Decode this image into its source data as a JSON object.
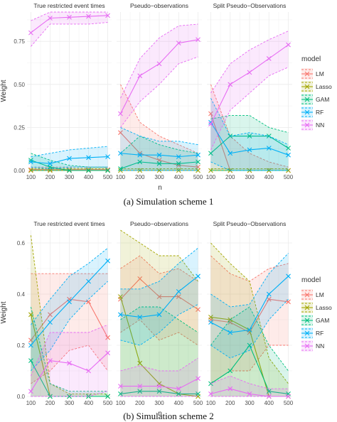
{
  "chart_data": [
    {
      "type": "line",
      "caption": "(a) Simulation scheme 1",
      "xlabel": "n",
      "ylabel": "Weight",
      "x": [
        100,
        200,
        300,
        400,
        500
      ],
      "ylim": [
        0,
        0.92
      ],
      "yticks": [
        0,
        0.25,
        0.5,
        0.75
      ],
      "ytick_labels": [
        "0.00",
        "0.25",
        "0.50",
        "0.75"
      ],
      "panels": [
        {
          "title": "True restricted event times",
          "series": [
            {
              "name": "LM",
              "values": [
                0.005,
                0.005,
                0.005,
                0.005,
                0.005
              ],
              "lower": [
                0.0,
                0.0,
                0.0,
                0.0,
                0.0
              ],
              "upper": [
                0.02,
                0.02,
                0.02,
                0.02,
                0.02
              ]
            },
            {
              "name": "Lasso",
              "values": [
                0.0,
                0.0,
                0.0,
                0.0,
                0.0
              ],
              "lower": [
                0.0,
                0.0,
                0.0,
                0.0,
                0.0
              ],
              "upper": [
                0.01,
                0.01,
                0.01,
                0.01,
                0.01
              ]
            },
            {
              "name": "GAM",
              "values": [
                0.06,
                0.02,
                0.0,
                0.0,
                0.0
              ],
              "lower": [
                0.0,
                0.0,
                0.0,
                0.0,
                0.0
              ],
              "upper": [
                0.1,
                0.06,
                0.03,
                0.02,
                0.02
              ]
            },
            {
              "name": "RF",
              "values": [
                0.05,
                0.04,
                0.07,
                0.075,
                0.08
              ],
              "lower": [
                0.02,
                0.01,
                0.02,
                0.02,
                0.02
              ],
              "upper": [
                0.08,
                0.1,
                0.12,
                0.13,
                0.14
              ]
            },
            {
              "name": "NN",
              "values": [
                0.8,
                0.885,
                0.89,
                0.895,
                0.9
              ],
              "lower": [
                0.72,
                0.85,
                0.85,
                0.85,
                0.86
              ],
              "upper": [
                0.87,
                0.92,
                0.92,
                0.92,
                0.92
              ]
            }
          ]
        },
        {
          "title": "Pseudo−observations",
          "series": [
            {
              "name": "LM",
              "values": [
                0.22,
                0.1,
                0.06,
                0.03,
                0.02
              ],
              "lower": [
                0.0,
                0.0,
                0.0,
                0.0,
                0.0
              ],
              "upper": [
                0.5,
                0.28,
                0.2,
                0.15,
                0.1
              ]
            },
            {
              "name": "Lasso",
              "values": [
                0.0,
                0.0,
                0.0,
                0.0,
                0.0
              ],
              "lower": [
                0.0,
                0.0,
                0.0,
                0.0,
                0.0
              ],
              "upper": [
                0.01,
                0.01,
                0.01,
                0.01,
                0.01
              ]
            },
            {
              "name": "GAM",
              "values": [
                0.01,
                0.05,
                0.04,
                0.04,
                0.05
              ],
              "lower": [
                0.0,
                0.0,
                0.0,
                0.0,
                0.0
              ],
              "upper": [
                0.1,
                0.2,
                0.15,
                0.12,
                0.1
              ]
            },
            {
              "name": "RF",
              "values": [
                0.1,
                0.09,
                0.09,
                0.08,
                0.09
              ],
              "lower": [
                0.0,
                0.0,
                0.0,
                0.0,
                0.0
              ],
              "upper": [
                0.25,
                0.2,
                0.17,
                0.17,
                0.15
              ]
            },
            {
              "name": "NN",
              "values": [
                0.33,
                0.55,
                0.62,
                0.74,
                0.76
              ],
              "lower": [
                0.25,
                0.4,
                0.5,
                0.62,
                0.66
              ],
              "upper": [
                0.42,
                0.65,
                0.77,
                0.84,
                0.85
              ]
            }
          ]
        },
        {
          "title": "Split Pseudo−Observations",
          "series": [
            {
              "name": "LM",
              "values": [
                0.33,
                0.0,
                0.0,
                0.0,
                0.0
              ],
              "lower": [
                0.0,
                0.0,
                0.0,
                0.0,
                0.0
              ],
              "upper": [
                0.5,
                0.2,
                0.1,
                0.05,
                0.02
              ]
            },
            {
              "name": "Lasso",
              "values": [
                0.0,
                0.0,
                0.0,
                0.0,
                0.0
              ],
              "lower": [
                0.0,
                0.0,
                0.0,
                0.0,
                0.0
              ],
              "upper": [
                0.01,
                0.01,
                0.01,
                0.01,
                0.01
              ]
            },
            {
              "name": "GAM",
              "values": [
                0.1,
                0.2,
                0.2,
                0.2,
                0.13
              ],
              "lower": [
                0.0,
                0.0,
                0.0,
                0.0,
                0.0
              ],
              "upper": [
                0.3,
                0.32,
                0.32,
                0.25,
                0.22
              ]
            },
            {
              "name": "RF",
              "values": [
                0.28,
                0.1,
                0.12,
                0.13,
                0.09
              ],
              "lower": [
                0.05,
                0.0,
                0.0,
                0.0,
                0.0
              ],
              "upper": [
                0.42,
                0.2,
                0.22,
                0.2,
                0.15
              ]
            },
            {
              "name": "NN",
              "values": [
                0.27,
                0.5,
                0.57,
                0.65,
                0.73
              ],
              "lower": [
                0.12,
                0.35,
                0.45,
                0.55,
                0.6
              ],
              "upper": [
                0.45,
                0.62,
                0.7,
                0.76,
                0.81
              ]
            }
          ]
        }
      ]
    },
    {
      "type": "line",
      "caption": "(b) Simulation scheme 2",
      "xlabel": "n",
      "ylabel": "Weight",
      "x": [
        100,
        200,
        300,
        400,
        500
      ],
      "ylim": [
        0,
        0.65
      ],
      "yticks": [
        0,
        0.2,
        0.4,
        0.6
      ],
      "ytick_labels": [
        "0.0",
        "0.2",
        "0.4",
        "0.6"
      ],
      "panels": [
        {
          "title": "True restricted event times",
          "series": [
            {
              "name": "LM",
              "values": [
                0.22,
                0.32,
                0.38,
                0.37,
                0.23
              ],
              "lower": [
                0.05,
                0.1,
                0.18,
                0.2,
                0.1
              ],
              "upper": [
                0.48,
                0.48,
                0.48,
                0.48,
                0.48
              ]
            },
            {
              "name": "Lasso",
              "values": [
                0.32,
                0.0,
                0.0,
                0.0,
                0.0
              ],
              "lower": [
                0.0,
                0.0,
                0.0,
                0.0,
                0.0
              ],
              "upper": [
                0.63,
                0.05,
                0.01,
                0.01,
                0.01
              ]
            },
            {
              "name": "GAM",
              "values": [
                0.14,
                0.0,
                0.0,
                0.0,
                0.0
              ],
              "lower": [
                0.0,
                0.0,
                0.0,
                0.0,
                0.0
              ],
              "upper": [
                0.35,
                0.05,
                0.02,
                0.02,
                0.02
              ]
            },
            {
              "name": "RF",
              "values": [
                0.2,
                0.29,
                0.37,
                0.45,
                0.53
              ],
              "lower": [
                0.1,
                0.18,
                0.3,
                0.38,
                0.45
              ],
              "upper": [
                0.28,
                0.38,
                0.47,
                0.52,
                0.58
              ]
            },
            {
              "name": "NN",
              "values": [
                0.02,
                0.14,
                0.13,
                0.1,
                0.17
              ],
              "lower": [
                0.0,
                0.0,
                0.0,
                0.0,
                0.02
              ],
              "upper": [
                0.08,
                0.25,
                0.25,
                0.25,
                0.28
              ]
            }
          ]
        },
        {
          "title": "Pseudo−observations",
          "series": [
            {
              "name": "LM",
              "values": [
                0.38,
                0.46,
                0.39,
                0.39,
                0.34
              ],
              "lower": [
                0.25,
                0.3,
                0.22,
                0.25,
                0.2
              ],
              "upper": [
                0.5,
                0.55,
                0.48,
                0.5,
                0.45
              ]
            },
            {
              "name": "Lasso",
              "values": [
                0.39,
                0.13,
                0.05,
                0.01,
                0.0
              ],
              "lower": [
                0.0,
                0.0,
                0.0,
                0.0,
                0.0
              ],
              "upper": [
                0.65,
                0.6,
                0.55,
                0.55,
                0.45
              ]
            },
            {
              "name": "GAM",
              "values": [
                0.01,
                0.02,
                0.02,
                0.01,
                0.01
              ],
              "lower": [
                0.0,
                0.0,
                0.0,
                0.0,
                0.0
              ],
              "upper": [
                0.3,
                0.35,
                0.35,
                0.3,
                0.25
              ]
            },
            {
              "name": "RF",
              "values": [
                0.32,
                0.31,
                0.32,
                0.41,
                0.47
              ],
              "lower": [
                0.22,
                0.2,
                0.25,
                0.32,
                0.36
              ],
              "upper": [
                0.42,
                0.42,
                0.45,
                0.52,
                0.58
              ]
            },
            {
              "name": "NN",
              "values": [
                0.04,
                0.04,
                0.04,
                0.03,
                0.07
              ],
              "lower": [
                0.0,
                0.0,
                0.0,
                0.0,
                0.0
              ],
              "upper": [
                0.1,
                0.12,
                0.1,
                0.1,
                0.15
              ]
            }
          ]
        },
        {
          "title": "Split Pseudo−Observations",
          "series": [
            {
              "name": "LM",
              "values": [
                0.3,
                0.29,
                0.25,
                0.38,
                0.37
              ],
              "lower": [
                0.05,
                0.1,
                0.1,
                0.2,
                0.2
              ],
              "upper": [
                0.55,
                0.48,
                0.45,
                0.5,
                0.52
              ]
            },
            {
              "name": "Lasso",
              "values": [
                0.31,
                0.3,
                0.26,
                0.0,
                0.0
              ],
              "lower": [
                0.0,
                0.0,
                0.0,
                0.0,
                0.0
              ],
              "upper": [
                0.6,
                0.52,
                0.45,
                0.15,
                0.05
              ]
            },
            {
              "name": "GAM",
              "values": [
                0.05,
                0.1,
                0.2,
                0.02,
                0.01
              ],
              "lower": [
                0.0,
                0.0,
                0.0,
                0.0,
                0.0
              ],
              "upper": [
                0.2,
                0.3,
                0.35,
                0.2,
                0.1
              ]
            },
            {
              "name": "RF",
              "values": [
                0.29,
                0.25,
                0.26,
                0.4,
                0.47
              ],
              "lower": [
                0.2,
                0.15,
                0.18,
                0.3,
                0.38
              ],
              "upper": [
                0.4,
                0.35,
                0.36,
                0.48,
                0.56
              ]
            },
            {
              "name": "NN",
              "values": [
                0.01,
                0.03,
                0.01,
                0.0,
                0.0
              ],
              "lower": [
                0.0,
                0.0,
                0.0,
                0.0,
                0.0
              ],
              "upper": [
                0.05,
                0.08,
                0.05,
                0.03,
                0.03
              ]
            }
          ]
        }
      ]
    }
  ],
  "legend": {
    "title": "model",
    "items": [
      "LM",
      "Lasso",
      "GAM",
      "RF",
      "NN"
    ]
  },
  "colors": {
    "LM": "#F8766D",
    "Lasso": "#A3A500",
    "GAM": "#00BF7D",
    "RF": "#00B0F6",
    "NN": "#E76BF3",
    "panel_bg": "#ffffff",
    "grid": "#ebebeb",
    "text": "#333333"
  }
}
